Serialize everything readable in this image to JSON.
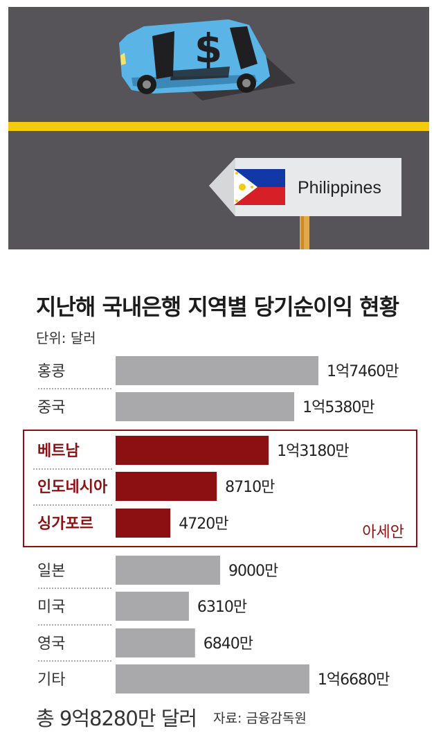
{
  "hero": {
    "sign_text": "Philippines",
    "car_symbol": "$",
    "colors": {
      "road": "#575459",
      "stripe": "#f5cb0f",
      "car": "#5ab5e6",
      "flag_blue": "#1238a8",
      "flag_red": "#d61f26"
    }
  },
  "header": {
    "title": "지난해 국내은행 지역별 당기순이익 현황",
    "unit": "단위: 달러"
  },
  "chart_data": {
    "type": "bar",
    "orientation": "horizontal",
    "categories": [
      "홍콩",
      "중국",
      "베트남",
      "인도네시아",
      "싱가포르",
      "일본",
      "미국",
      "영국",
      "기타"
    ],
    "values": [
      17460,
      15380,
      13180,
      8710,
      4720,
      9000,
      6310,
      6840,
      16680
    ],
    "value_unit": "만 달러",
    "data_labels": [
      "1억7460만",
      "1억5380만",
      "1억3180만",
      "8710만",
      "4720만",
      "9000만",
      "6310만",
      "6840만",
      "1억6680만"
    ],
    "highlight": {
      "label": "아세안",
      "categories": [
        "베트남",
        "인도네시아",
        "싱가포르"
      ],
      "color": "#8c0f11"
    },
    "colors": {
      "default_bar": "#a9a9ab",
      "highlight_bar": "#8c0f11",
      "highlight_text": "#8c0f11"
    },
    "grid": false,
    "legend": "none"
  },
  "footer": {
    "total": "총 9억8280만 달러",
    "source": "자료: 금융감독원"
  }
}
